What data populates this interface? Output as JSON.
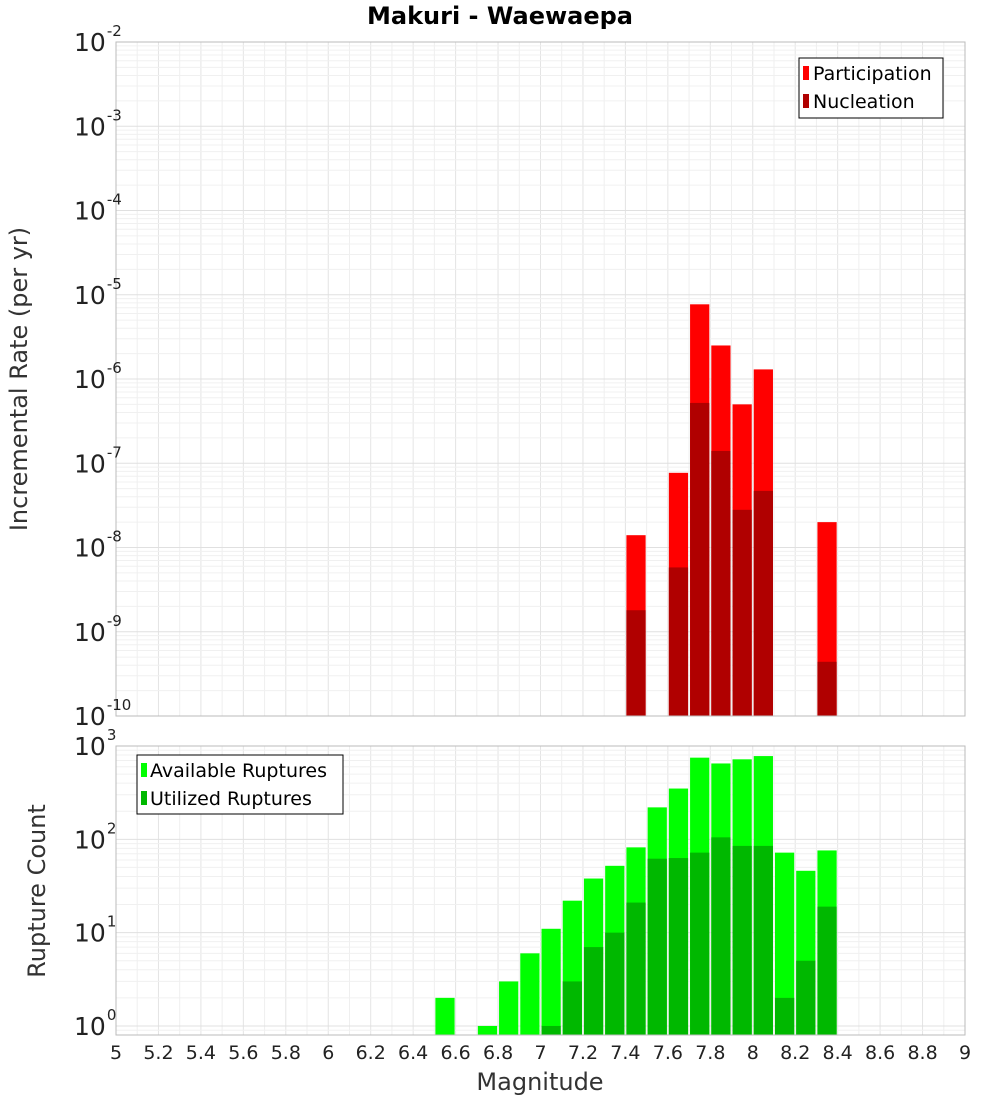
{
  "chart_data": [
    {
      "type": "bar",
      "title": "Makuri - Waewaepa",
      "ylabel": "Incremental Rate (per yr)",
      "xlabel": "",
      "yscale": "log",
      "ylim": [
        1e-10,
        0.01
      ],
      "xlim": [
        5,
        9
      ],
      "grid": true,
      "legend_position": "top-right",
      "ytick_labels": [
        {
          "base": "10",
          "exp": "-2"
        },
        {
          "base": "10",
          "exp": "-3"
        },
        {
          "base": "10",
          "exp": "-4"
        },
        {
          "base": "10",
          "exp": "-5"
        },
        {
          "base": "10",
          "exp": "-6"
        },
        {
          "base": "10",
          "exp": "-7"
        },
        {
          "base": "10",
          "exp": "-8"
        },
        {
          "base": "10",
          "exp": "-9"
        },
        {
          "base": "10",
          "exp": "-10"
        }
      ],
      "series": [
        {
          "name": "Participation",
          "color": "#ff0000",
          "x": [
            7.45,
            7.65,
            7.75,
            7.85,
            7.95,
            8.05,
            8.35
          ],
          "values": [
            1.4e-08,
            7.7e-08,
            7.7e-06,
            2.5e-06,
            5e-07,
            1.3e-06,
            2e-08
          ]
        },
        {
          "name": "Nucleation",
          "color": "#b00000",
          "x": [
            7.45,
            7.65,
            7.75,
            7.85,
            7.95,
            8.05,
            8.35
          ],
          "values": [
            1.8e-09,
            5.8e-09,
            5.2e-07,
            1.4e-07,
            2.8e-08,
            4.7e-08,
            4.4e-10
          ]
        }
      ]
    },
    {
      "type": "bar",
      "ylabel": "Rupture Count",
      "xlabel": "Magnitude",
      "yscale": "log",
      "ylim": [
        0.8,
        1000
      ],
      "xlim": [
        5,
        9
      ],
      "grid": true,
      "legend_position": "top-left",
      "x_tick_labels": [
        "5",
        "5.2",
        "5.4",
        "5.6",
        "5.8",
        "6",
        "6.2",
        "6.4",
        "6.6",
        "6.8",
        "7",
        "7.2",
        "7.4",
        "7.6",
        "7.8",
        "8",
        "8.2",
        "8.4",
        "8.6",
        "8.8",
        "9"
      ],
      "ytick_labels": [
        {
          "base": "10",
          "exp": "3"
        },
        {
          "base": "10",
          "exp": "2"
        },
        {
          "base": "10",
          "exp": "1"
        },
        {
          "base": "10",
          "exp": "0"
        }
      ],
      "series": [
        {
          "name": "Available Ruptures",
          "color": "#00ff00",
          "x": [
            6.55,
            6.75,
            6.85,
            6.95,
            7.05,
            7.15,
            7.25,
            7.35,
            7.45,
            7.55,
            7.65,
            7.75,
            7.85,
            7.95,
            8.05,
            8.15,
            8.25,
            8.35
          ],
          "values": [
            2,
            1,
            3,
            6,
            11,
            22,
            38,
            52,
            82,
            220,
            350,
            750,
            650,
            720,
            780,
            72,
            46,
            76
          ]
        },
        {
          "name": "Utilized Ruptures",
          "color": "#00b800",
          "x": [
            7.05,
            7.15,
            7.25,
            7.35,
            7.45,
            7.55,
            7.65,
            7.75,
            7.85,
            7.95,
            8.05,
            8.15,
            8.25,
            8.35
          ],
          "values": [
            1,
            3,
            7,
            10,
            21,
            62,
            63,
            72,
            105,
            85,
            85,
            2,
            5,
            19
          ]
        }
      ]
    }
  ]
}
